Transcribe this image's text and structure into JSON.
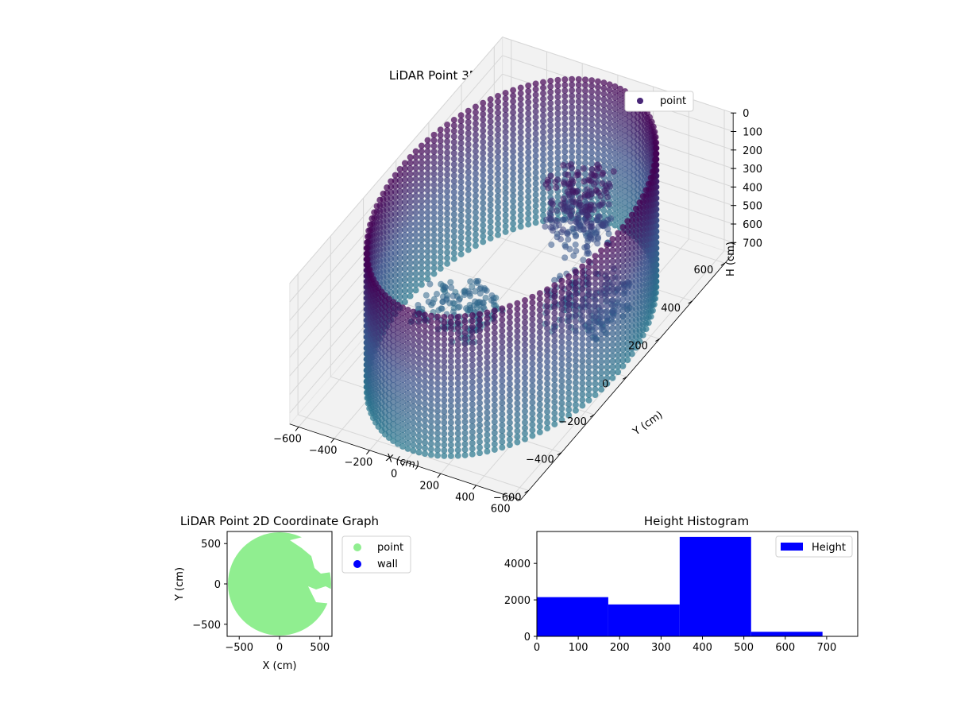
{
  "figure": {
    "background": "#ffffff"
  },
  "chart_data": [
    {
      "type": "scatter",
      "projection": "3d",
      "title": "LiDAR Point 3D Coordinate Graph",
      "xlabel": "X (cm)",
      "ylabel": "Y (cm)",
      "zlabel": "H (cm)",
      "xlim": [
        -650,
        650
      ],
      "ylim": [
        -650,
        650
      ],
      "zlim": [
        760,
        0
      ],
      "z_inverted": true,
      "x_ticks": [
        -600,
        -400,
        -200,
        0,
        200,
        400,
        600
      ],
      "y_ticks": [
        -600,
        -400,
        -200,
        0,
        200,
        400,
        600
      ],
      "z_ticks": [
        0,
        100,
        200,
        300,
        400,
        500,
        600,
        700
      ],
      "grid": true,
      "legend": {
        "position": "upper right",
        "entries": [
          {
            "label": "point",
            "color": "#482677"
          }
        ]
      },
      "colormap": "viridis",
      "colors": {
        "low": "#440154",
        "mid": "#3b528b",
        "high": "#2a788e",
        "pane": "#f2f2f2",
        "grid": "#d7d7d7"
      },
      "wall": {
        "shape": "circle",
        "radius": 600,
        "z_top": 0,
        "z_bottom": 760
      },
      "objects": [
        {
          "kind": "dense-cluster",
          "x": 150,
          "y": 250,
          "z_top": 80,
          "z_bottom": 480
        },
        {
          "kind": "ramp",
          "x": -250,
          "y": -50,
          "z_top": 560,
          "z_bottom": 690
        },
        {
          "kind": "ramp",
          "x": 350,
          "y": 80,
          "z_top": 420,
          "z_bottom": 620
        }
      ]
    },
    {
      "type": "scatter",
      "title": "LiDAR Point 2D Coordinate Graph",
      "xlabel": "X (cm)",
      "ylabel": "Y (cm)",
      "xlim": [
        -650,
        650
      ],
      "ylim": [
        -650,
        650
      ],
      "x_ticks": [
        -500,
        0,
        500
      ],
      "y_ticks": [
        -500,
        0,
        500
      ],
      "series": [
        {
          "name": "point",
          "color": "#90ee90",
          "shape": "disc",
          "center": [
            0,
            0
          ],
          "radius": 640
        },
        {
          "name": "wall",
          "color": "#0000ff"
        }
      ],
      "legend": {
        "position": "outside right"
      }
    },
    {
      "type": "bar",
      "subtype": "histogram",
      "title": "Height Histogram",
      "xlabel": "",
      "ylabel": "",
      "bins": [
        0,
        172.5,
        345,
        517.5,
        690
      ],
      "counts": [
        2150,
        1750,
        5450,
        250
      ],
      "color": "#0000ff",
      "xlim": [
        0,
        775
      ],
      "ylim": [
        0,
        5750
      ],
      "x_ticks": [
        0,
        100,
        200,
        300,
        400,
        500,
        600,
        700
      ],
      "y_ticks": [
        0,
        2000,
        4000
      ],
      "series": [
        {
          "name": "Height",
          "color": "#0000ff"
        }
      ],
      "legend": {
        "position": "upper right"
      }
    }
  ]
}
